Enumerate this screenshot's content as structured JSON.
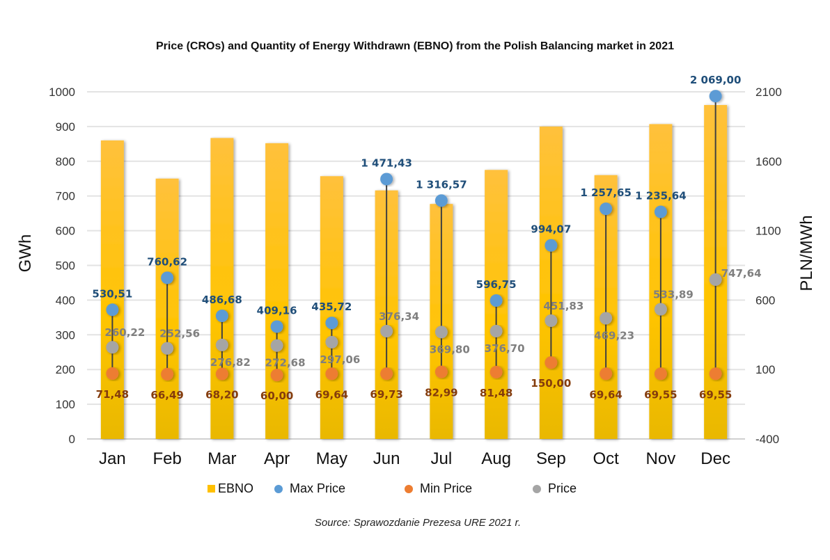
{
  "chart_data": {
    "type": "bar",
    "title": "Price (CROs) and Quantity of Energy Withdrawn (EBNO) from the Polish Balancing market in 2021",
    "categories": [
      "Jan",
      "Feb",
      "Mar",
      "Apr",
      "May",
      "Jun",
      "Jul",
      "Aug",
      "Sep",
      "Oct",
      "Nov",
      "Dec"
    ],
    "ylabel": "GWh",
    "y2label": "PLN/MWh",
    "ylim": [
      0,
      1000
    ],
    "y_ticks": [
      0,
      100,
      200,
      300,
      400,
      500,
      600,
      700,
      800,
      900,
      1000
    ],
    "y2lim": [
      -400,
      2100
    ],
    "y2_ticks": [
      -400,
      100,
      600,
      1100,
      1600,
      2100
    ],
    "grid": true,
    "legend_position": "bottom",
    "series": [
      {
        "name": "EBNO",
        "type": "bar",
        "axis": "left",
        "color": "#ffc000",
        "values": [
          860,
          750,
          867,
          852,
          757,
          716,
          677,
          775,
          900,
          760,
          907,
          962
        ]
      },
      {
        "name": "Max Price",
        "type": "scatter",
        "axis": "right",
        "color": "#5b9bd5",
        "label_color": "#1f4e79",
        "values": [
          530.51,
          760.62,
          486.68,
          409.16,
          435.72,
          1471.43,
          1316.57,
          596.75,
          994.07,
          1257.65,
          1235.64,
          2069.0
        ],
        "labels": [
          "530,51",
          "760,62",
          "486,68",
          "409,16",
          "435,72",
          "1 471,43",
          "1 316,57",
          "596,75",
          "994,07",
          "1 257,65",
          "1 235,64",
          "2 069,00"
        ]
      },
      {
        "name": "Min Price",
        "type": "scatter",
        "axis": "right",
        "color": "#ed7d31",
        "label_color": "#843c0c",
        "values": [
          71.48,
          66.49,
          68.2,
          60.0,
          69.64,
          69.73,
          82.99,
          81.48,
          150.0,
          69.64,
          69.55,
          69.55
        ],
        "labels": [
          "71,48",
          "66,49",
          "68,20",
          "60,00",
          "69,64",
          "69,73",
          "82,99",
          "81,48",
          "150,00",
          "69,64",
          "69,55",
          "69,55"
        ]
      },
      {
        "name": "Price",
        "type": "scatter",
        "axis": "right",
        "color": "#a5a5a5",
        "label_color": "#7f7f7f",
        "values": [
          260.22,
          252.56,
          276.82,
          272.68,
          297.06,
          376.34,
          369.8,
          376.7,
          451.83,
          469.23,
          533.89,
          747.64
        ],
        "labels": [
          "260,22",
          "252,56",
          "276,82",
          "272,68",
          "297,06",
          "376,34",
          "369,80",
          "376,70",
          "451,83",
          "469,23",
          "533,89",
          "747,64"
        ]
      }
    ],
    "source": "Source: Sprawozdanie Prezesa URE 2021 r."
  },
  "legend": {
    "items": [
      {
        "label": "EBNO",
        "color": "#ffc000",
        "shape": "square"
      },
      {
        "label": "Max Price",
        "color": "#5b9bd5",
        "shape": "circle"
      },
      {
        "label": "Min Price",
        "color": "#ed7d31",
        "shape": "circle"
      },
      {
        "label": "Price",
        "color": "#a5a5a5",
        "shape": "circle"
      }
    ]
  }
}
